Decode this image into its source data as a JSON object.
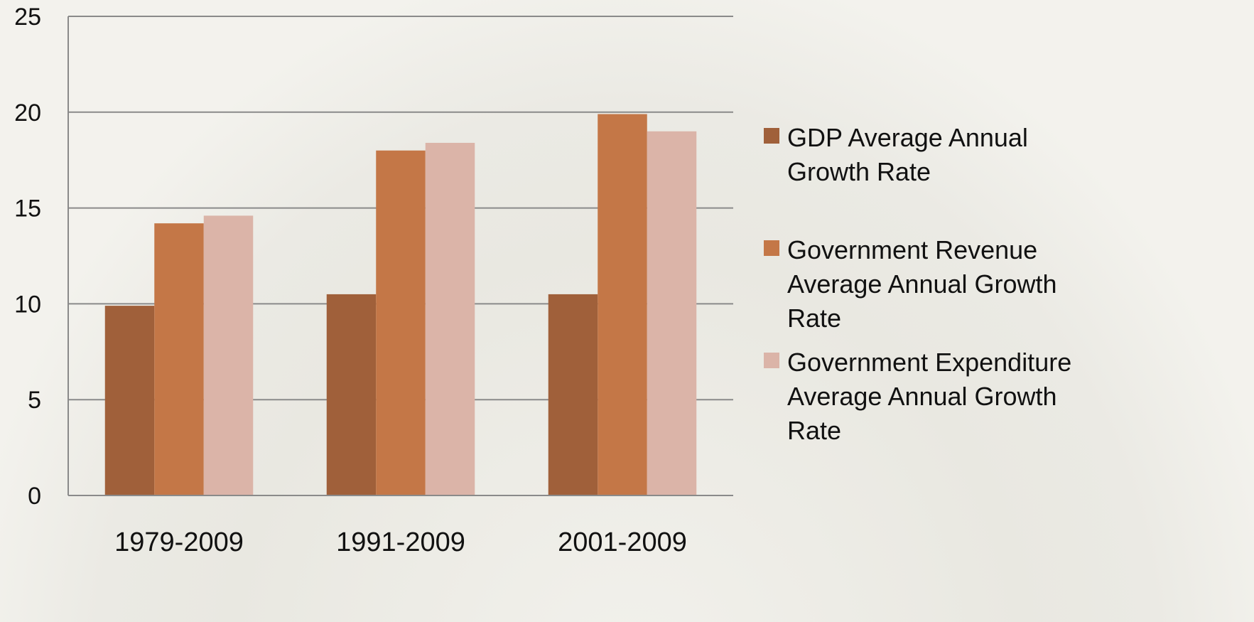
{
  "chart_data": {
    "type": "bar",
    "categories": [
      "1979-2009",
      "1991-2009",
      "2001-2009"
    ],
    "series": [
      {
        "name": "GDP Average Annual Growth Rate",
        "color": "#a0603a",
        "values": [
          9.9,
          10.5,
          10.5
        ]
      },
      {
        "name": "Government Revenue Average Annual Growth Rate",
        "color": "#c47747",
        "values": [
          14.2,
          18.0,
          19.9
        ]
      },
      {
        "name": "Government Expenditure Average Annual Growth Rate",
        "color": "#dbb4a8",
        "values": [
          14.6,
          18.4,
          19.0
        ]
      }
    ],
    "ylim": [
      0,
      25
    ],
    "yticks": [
      0,
      5,
      10,
      15,
      20,
      25
    ],
    "grid": true,
    "legend": "right"
  }
}
